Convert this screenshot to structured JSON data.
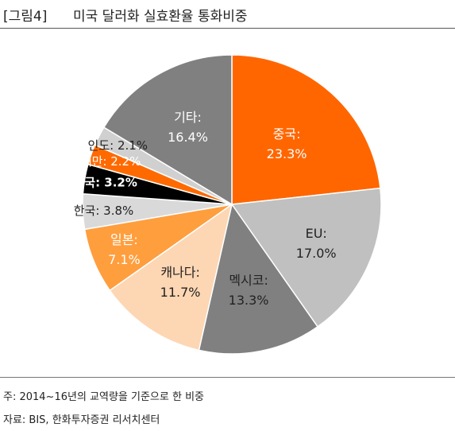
{
  "figure": {
    "label": "[그림4]",
    "title": "미국 달러화 실효환율 통화비중"
  },
  "chart_data": {
    "type": "pie",
    "start_angle_deg": 0,
    "direction": "clockwise",
    "slices": [
      {
        "label": "중국",
        "value": 23.3,
        "display": "23.3%",
        "color": "#ff6600",
        "text_color": "#ffffff"
      },
      {
        "label": "EU",
        "value": 17.0,
        "display": "17.0%",
        "color": "#c0c0c0",
        "text_color": "#222222"
      },
      {
        "label": "멕시코",
        "value": 13.3,
        "display": "13.3%",
        "color": "#808080",
        "text_color": "#222222"
      },
      {
        "label": "캐나다",
        "value": 11.7,
        "display": "11.7%",
        "color": "#fdd6b3",
        "text_color": "#222222"
      },
      {
        "label": "일본",
        "value": 7.1,
        "display": "7.1%",
        "color": "#ff9e3d",
        "text_color": "#ffffff"
      },
      {
        "label": "한국",
        "value": 3.8,
        "display": "3.8%",
        "color": "#d9d9d9",
        "text_color": "#222222"
      },
      {
        "label": "영국",
        "value": 3.2,
        "display": "3.2%",
        "color": "#000000",
        "text_color": "#ffffff"
      },
      {
        "label": "대만",
        "value": 2.2,
        "display": "2.2%",
        "color": "#ff6a00",
        "text_color": "#ffffff"
      },
      {
        "label": "인도",
        "value": 2.1,
        "display": "2.1%",
        "color": "#d0d0d0",
        "text_color": "#222222"
      },
      {
        "label": "기타",
        "value": 16.4,
        "display": "16.4%",
        "color": "#808080",
        "text_color": "#ffffff"
      }
    ]
  },
  "notes": {
    "note": "주: 2014~16년의 교역량을 기준으로 한 비중",
    "source": "자료: BIS, 한화투자증권 리서치센터"
  }
}
